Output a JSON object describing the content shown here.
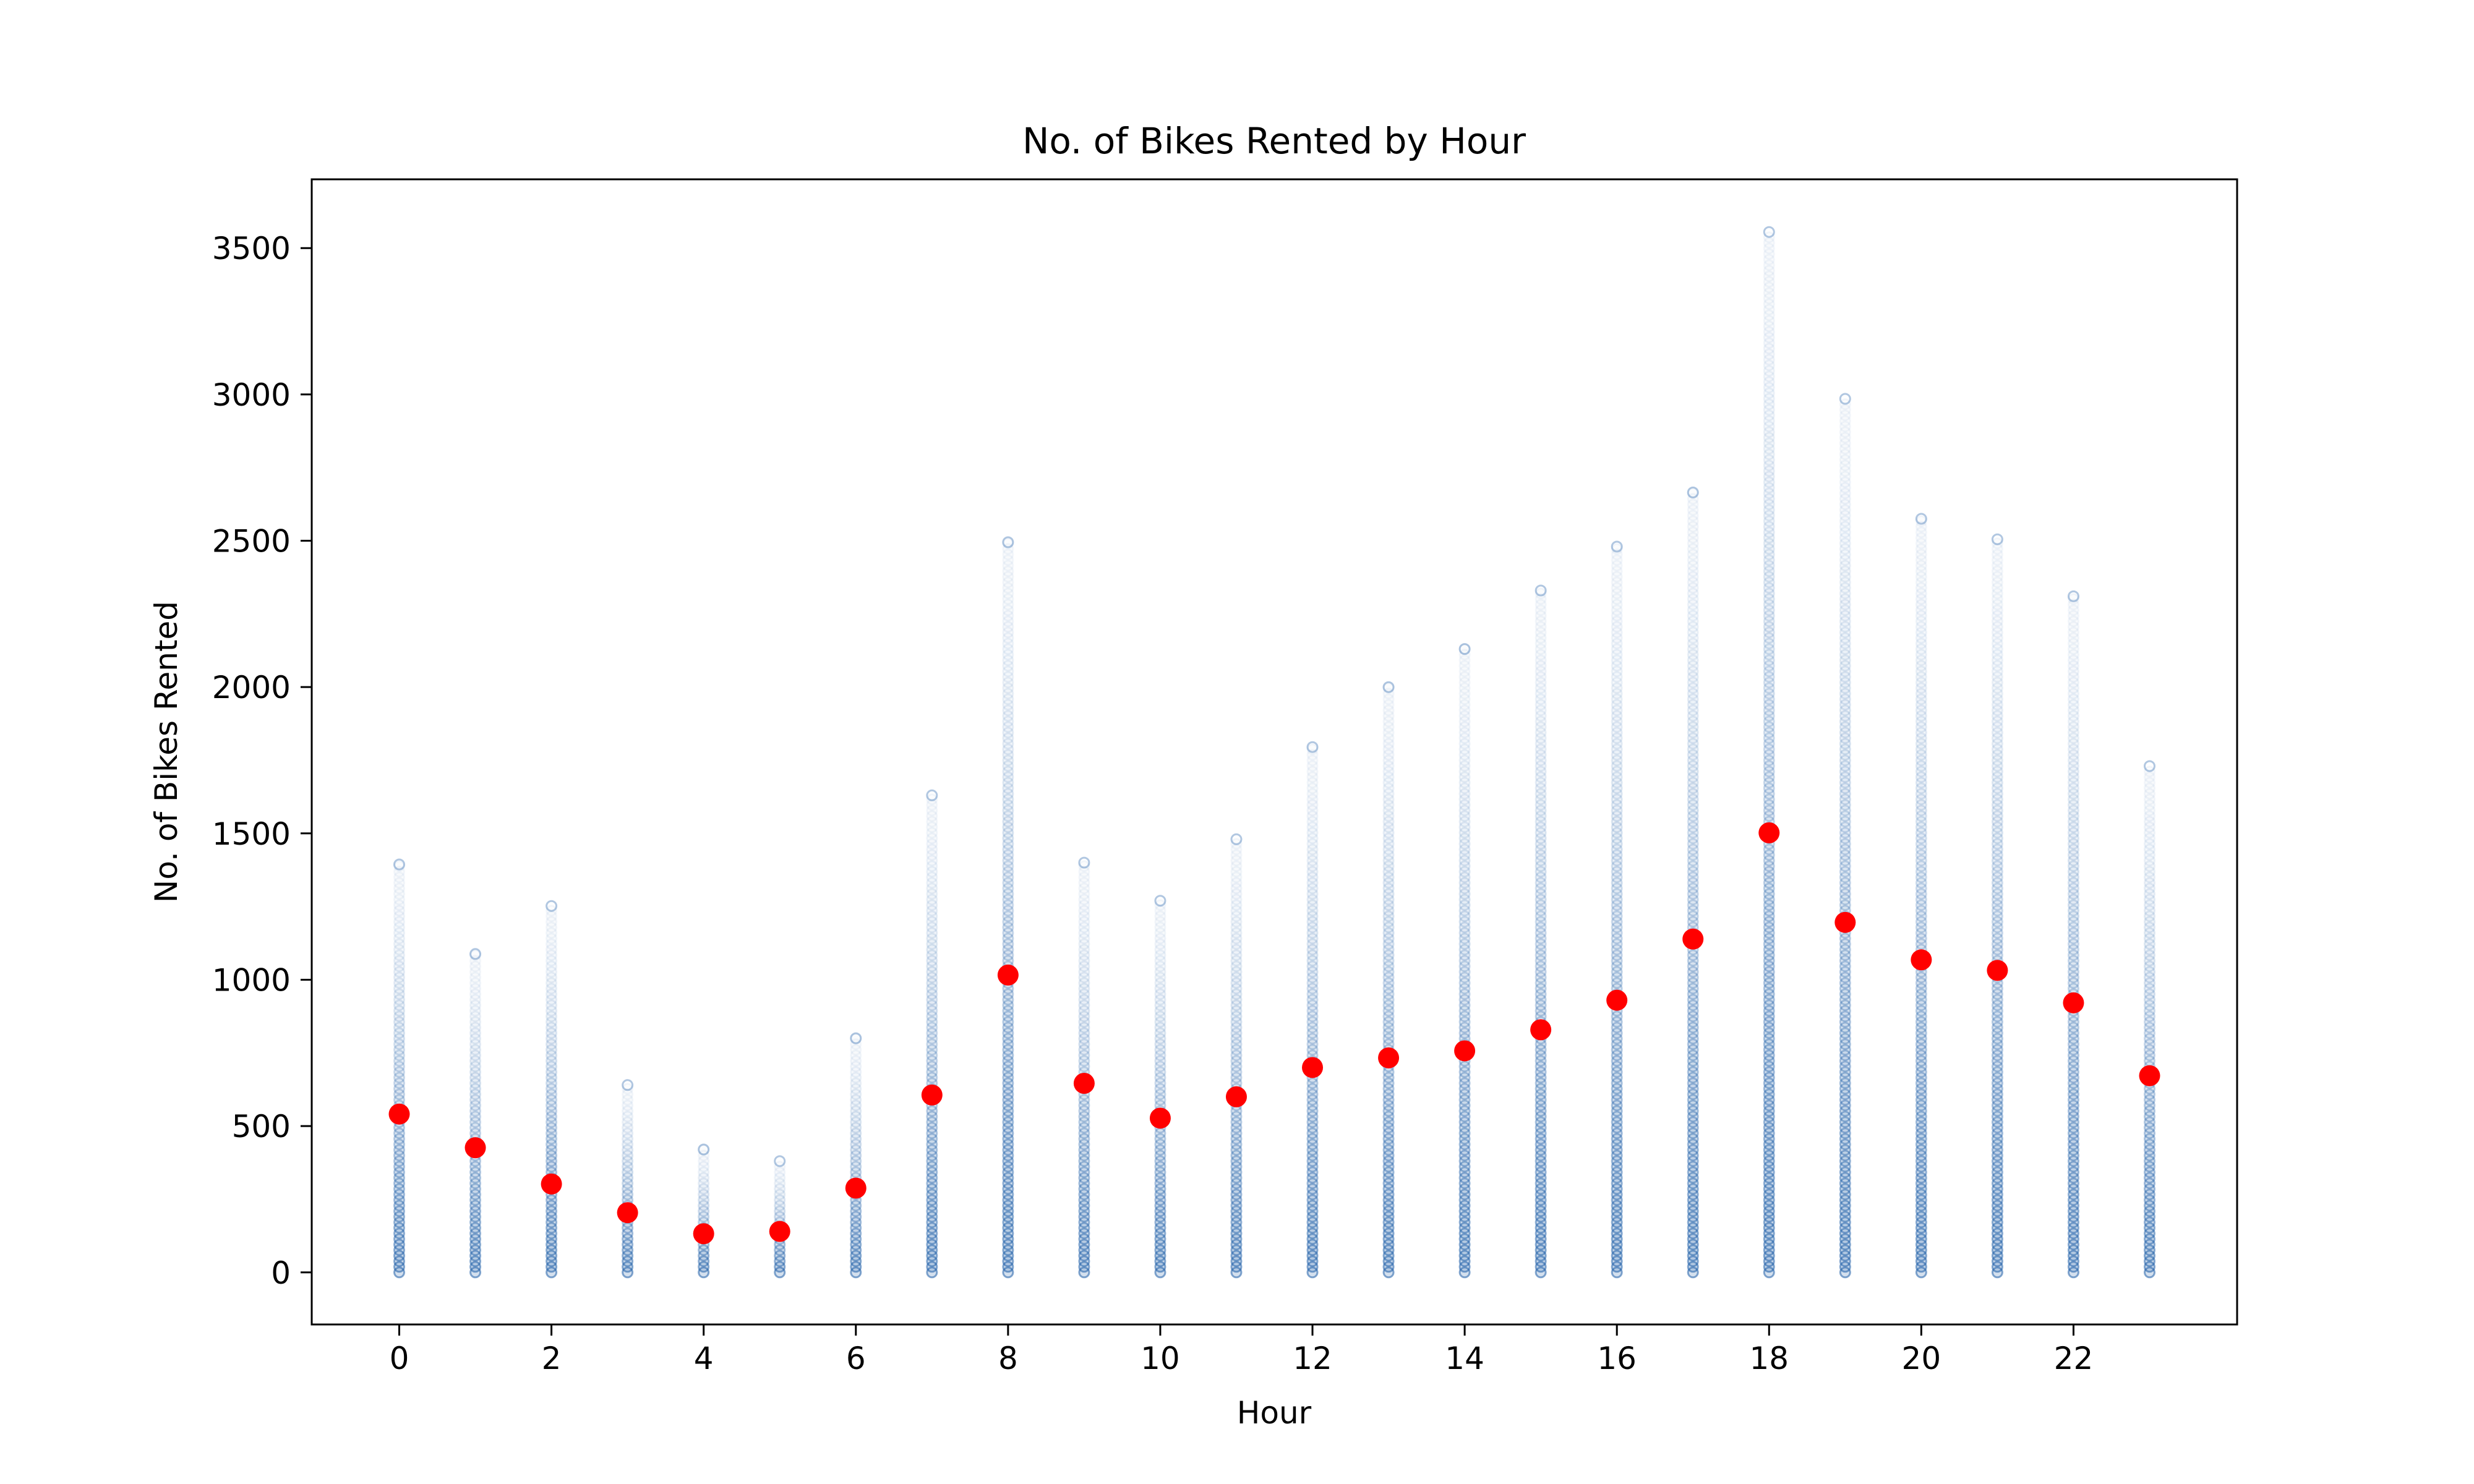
{
  "chart_data": {
    "type": "scatter",
    "title": "No. of Bikes Rented by Hour",
    "xlabel": "Hour",
    "ylabel": "No. of Bikes Rented",
    "xlim": [
      -1.15,
      24.15
    ],
    "ylim": [
      -178,
      3735
    ],
    "xticks": [
      0,
      2,
      4,
      6,
      8,
      10,
      12,
      14,
      16,
      18,
      20,
      22
    ],
    "xtick_labels": [
      "0",
      "2",
      "4",
      "6",
      "8",
      "10",
      "12",
      "14",
      "16",
      "18",
      "20",
      "22"
    ],
    "yticks": [
      0,
      500,
      1000,
      1500,
      2000,
      2500,
      3000,
      3500
    ],
    "ytick_labels": [
      "0",
      "500",
      "1000",
      "1500",
      "2000",
      "2500",
      "3000",
      "3500"
    ],
    "grid": false,
    "legend": "none",
    "x": [
      0,
      1,
      2,
      3,
      4,
      5,
      6,
      7,
      8,
      9,
      10,
      11,
      12,
      13,
      14,
      15,
      16,
      17,
      18,
      19,
      20,
      21,
      22,
      23
    ],
    "series": [
      {
        "role": "observations",
        "marker": "hollow-circle",
        "color": "#1f5fa8",
        "range_min": [
          0,
          0,
          0,
          0,
          0,
          0,
          0,
          0,
          0,
          0,
          0,
          0,
          0,
          0,
          0,
          0,
          0,
          0,
          0,
          0,
          0,
          0,
          0,
          0
        ],
        "range_max": [
          1394,
          1088,
          1252,
          640,
          420,
          380,
          800,
          1630,
          2495,
          1400,
          1270,
          1480,
          1795,
          2000,
          2130,
          2330,
          2480,
          2665,
          3555,
          2985,
          2575,
          2505,
          2310,
          1730
        ]
      },
      {
        "role": "hourly mean",
        "marker": "filled-circle",
        "color": "#ff0000",
        "values": [
          541,
          426,
          302,
          204,
          132,
          140,
          288,
          606,
          1016,
          646,
          527,
          600,
          700,
          733,
          757,
          829,
          930,
          1139,
          1502,
          1196,
          1068,
          1032,
          921,
          672
        ]
      }
    ]
  }
}
